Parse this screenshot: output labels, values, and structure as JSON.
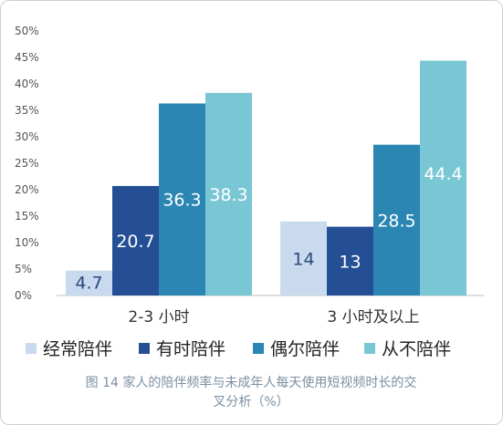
{
  "chart_data": {
    "type": "bar",
    "categories": [
      "2-3 小时",
      "3 小时及以上"
    ],
    "series": [
      {
        "name": "经常陪伴",
        "color": "#c9d9ee",
        "values": [
          4.7,
          14
        ]
      },
      {
        "name": "有时陪伴",
        "color": "#244f95",
        "values": [
          20.7,
          13
        ]
      },
      {
        "name": "偶尔陪伴",
        "color": "#2b86b3",
        "values": [
          36.3,
          28.5
        ]
      },
      {
        "name": "从不陪伴",
        "color": "#79c7d4",
        "values": [
          38.3,
          44.4
        ]
      }
    ],
    "yticks": [
      "0%",
      "5%",
      "10%",
      "15%",
      "20%",
      "25%",
      "30%",
      "35%",
      "40%",
      "45%",
      "50%"
    ],
    "ylim": [
      0,
      50
    ],
    "xlabel": "",
    "ylabel": "",
    "grid": false,
    "legend_position": "bottom"
  },
  "caption_line1": "图 14  家人的陪伴频率与未成年人每天使用短视频时长的交",
  "caption_line2": "叉分析（%）"
}
